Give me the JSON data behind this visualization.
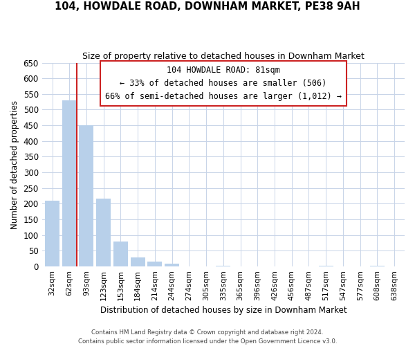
{
  "title": "104, HOWDALE ROAD, DOWNHAM MARKET, PE38 9AH",
  "subtitle": "Size of property relative to detached houses in Downham Market",
  "xlabel": "Distribution of detached houses by size in Downham Market",
  "ylabel": "Number of detached properties",
  "bar_labels": [
    "32sqm",
    "62sqm",
    "93sqm",
    "123sqm",
    "153sqm",
    "184sqm",
    "214sqm",
    "244sqm",
    "274sqm",
    "305sqm",
    "335sqm",
    "365sqm",
    "396sqm",
    "426sqm",
    "456sqm",
    "487sqm",
    "517sqm",
    "547sqm",
    "577sqm",
    "608sqm",
    "638sqm"
  ],
  "bar_values": [
    210,
    530,
    450,
    215,
    80,
    28,
    15,
    8,
    0,
    0,
    2,
    0,
    0,
    0,
    0,
    0,
    1,
    0,
    0,
    1,
    0
  ],
  "bar_color": "#b8d0ea",
  "highlight_color": "#cc2222",
  "vline_index": 1,
  "ylim": [
    0,
    650
  ],
  "yticks": [
    0,
    50,
    100,
    150,
    200,
    250,
    300,
    350,
    400,
    450,
    500,
    550,
    600,
    650
  ],
  "annotation_title": "104 HOWDALE ROAD: 81sqm",
  "annotation_line1": "← 33% of detached houses are smaller (506)",
  "annotation_line2": "66% of semi-detached houses are larger (1,012) →",
  "footer_line1": "Contains HM Land Registry data © Crown copyright and database right 2024.",
  "footer_line2": "Contains public sector information licensed under the Open Government Licence v3.0.",
  "background_color": "#ffffff",
  "grid_color": "#c8d4e8"
}
